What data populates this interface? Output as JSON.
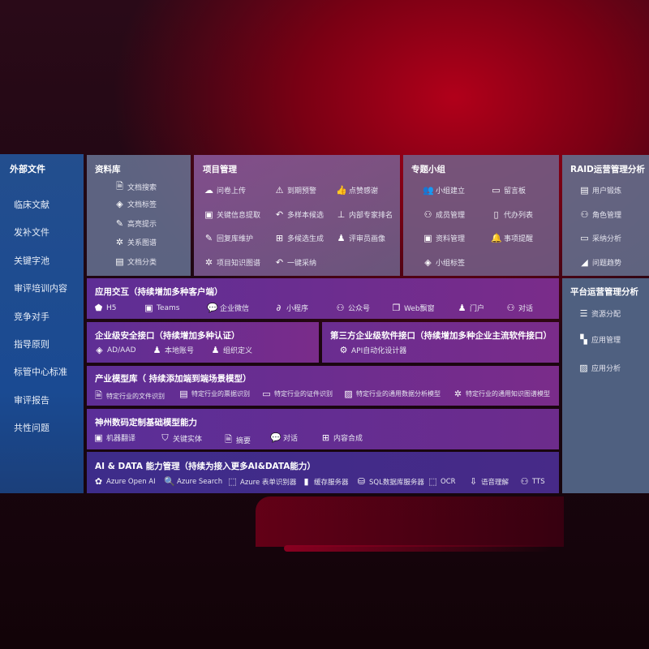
{
  "external_files": {
    "title": "外部文件",
    "items": [
      "临床文献",
      "发补文件",
      "关键字池",
      "审评培训内容",
      "竞争对手",
      "指导原则",
      "标管中心标准",
      "审评报告",
      "共性问题"
    ]
  },
  "library": {
    "title": "资料库",
    "items": [
      {
        "icon": "doc-search-icon",
        "label": "文档搜索"
      },
      {
        "icon": "tag-icon",
        "label": "文档标签"
      },
      {
        "icon": "pen-icon",
        "label": "高亮提示"
      },
      {
        "icon": "graph-icon",
        "label": "关系图谱"
      },
      {
        "icon": "doc-category-icon",
        "label": "文档分类"
      }
    ]
  },
  "project": {
    "title": "项目管理",
    "items": [
      {
        "icon": "cloud-upload-icon",
        "label": "问卷上传"
      },
      {
        "icon": "alarm-icon",
        "label": "到期预警"
      },
      {
        "icon": "thumbs-up-icon",
        "label": "点赞感谢"
      },
      {
        "icon": "extract-icon",
        "label": "关键信息提取"
      },
      {
        "icon": "reply-icon",
        "label": "多样本候选"
      },
      {
        "icon": "ranking-icon",
        "label": "内部专家排名"
      },
      {
        "icon": "edit-icon",
        "label": "回复库维护"
      },
      {
        "icon": "puzzle-icon",
        "label": "多候选生成"
      },
      {
        "icon": "person-icon",
        "label": "评审员画像"
      },
      {
        "icon": "graph-icon",
        "label": "项目知识图谱"
      },
      {
        "icon": "reply-icon",
        "label": "一键采纳"
      }
    ]
  },
  "group": {
    "title": "专题小组",
    "items": [
      {
        "icon": "group-icon",
        "label": "小组建立"
      },
      {
        "icon": "bbs-icon",
        "label": "留言板"
      },
      {
        "icon": "user-add-icon",
        "label": "成员管理"
      },
      {
        "icon": "clipboard-icon",
        "label": "代办列表"
      },
      {
        "icon": "folder-icon",
        "label": "资料管理"
      },
      {
        "icon": "bell-icon",
        "label": "事项提醒"
      },
      {
        "icon": "tag-icon",
        "label": "小组标签"
      }
    ]
  },
  "raid": {
    "title": "RAID运营管理分析",
    "items": [
      {
        "icon": "id-card-icon",
        "label": "用户锻炼"
      },
      {
        "icon": "users-icon",
        "label": "角色管理"
      },
      {
        "icon": "qa-icon",
        "label": "采纳分析"
      },
      {
        "icon": "trend-icon",
        "label": "问题趋势"
      }
    ]
  },
  "platform": {
    "title": "平台运营管理分析",
    "items": [
      {
        "icon": "list-icon",
        "label": "资源分配"
      },
      {
        "icon": "apps-icon",
        "label": "应用管理"
      },
      {
        "icon": "chart-icon",
        "label": "应用分析"
      }
    ]
  },
  "interaction": {
    "title": "应用交互（持续增加多种客户端）",
    "items": [
      {
        "icon": "html5-icon",
        "label": "H5"
      },
      {
        "icon": "teams-icon",
        "label": "Teams"
      },
      {
        "icon": "wechat-icon",
        "label": "企业微信"
      },
      {
        "icon": "miniprogram-icon",
        "label": "小程序"
      },
      {
        "icon": "official-account-icon",
        "label": "公众号"
      },
      {
        "icon": "window-icon",
        "label": "Web飘窗"
      },
      {
        "icon": "portal-icon",
        "label": "门户"
      },
      {
        "icon": "chat-icon",
        "label": "对话"
      }
    ]
  },
  "security": {
    "title": "企业级安全接口（持续增加多种认证）",
    "items": [
      {
        "icon": "ad-icon",
        "label": "AD/AAD"
      },
      {
        "icon": "local-account-icon",
        "label": "本地账号"
      },
      {
        "icon": "org-icon",
        "label": "组织定义"
      }
    ]
  },
  "thirdparty": {
    "title": "第三方企业级软件接口（持续增加多种企业主流软件接口）",
    "items": [
      {
        "icon": "api-gear-icon",
        "label": "API自动化设计器"
      }
    ]
  },
  "industry": {
    "title": "产业模型库（ 持续添加端到端场景模型）",
    "items": [
      {
        "icon": "file-icon",
        "label": "特定行业的文件识别"
      },
      {
        "icon": "receipt-icon",
        "label": "特定行业的票据识别"
      },
      {
        "icon": "id-card-icon",
        "label": "特定行业的证件识别"
      },
      {
        "icon": "analysis-icon",
        "label": "特定行业的通用数据分析模型"
      },
      {
        "icon": "graph-icon",
        "label": "特定行业的通用知识图谱模型"
      }
    ]
  },
  "base_model": {
    "title": "神州数码定制基础模型能力",
    "items": [
      {
        "icon": "translate-icon",
        "label": "机器翻译"
      },
      {
        "icon": "entity-icon",
        "label": "关键实体"
      },
      {
        "icon": "summary-icon",
        "label": "摘要"
      },
      {
        "icon": "chat-icon",
        "label": "对话"
      },
      {
        "icon": "compose-icon",
        "label": "内容合成"
      }
    ]
  },
  "ai_data": {
    "title": "AI & DATA 能力管理（持续为接入更多AI&DATA能力）",
    "items": [
      {
        "icon": "openai-icon",
        "label": "Azure Open AI"
      },
      {
        "icon": "search-icon",
        "label": "Azure Search"
      },
      {
        "icon": "form-icon",
        "label": "Azure 表单识别器"
      },
      {
        "icon": "cache-icon",
        "label": "缓存服务器"
      },
      {
        "icon": "sql-icon",
        "label": "SQL数据库服务器"
      },
      {
        "icon": "ocr-icon",
        "label": "OCR"
      },
      {
        "icon": "speech-icon",
        "label": "语音理解"
      },
      {
        "icon": "tts-icon",
        "label": "TTS"
      }
    ]
  }
}
